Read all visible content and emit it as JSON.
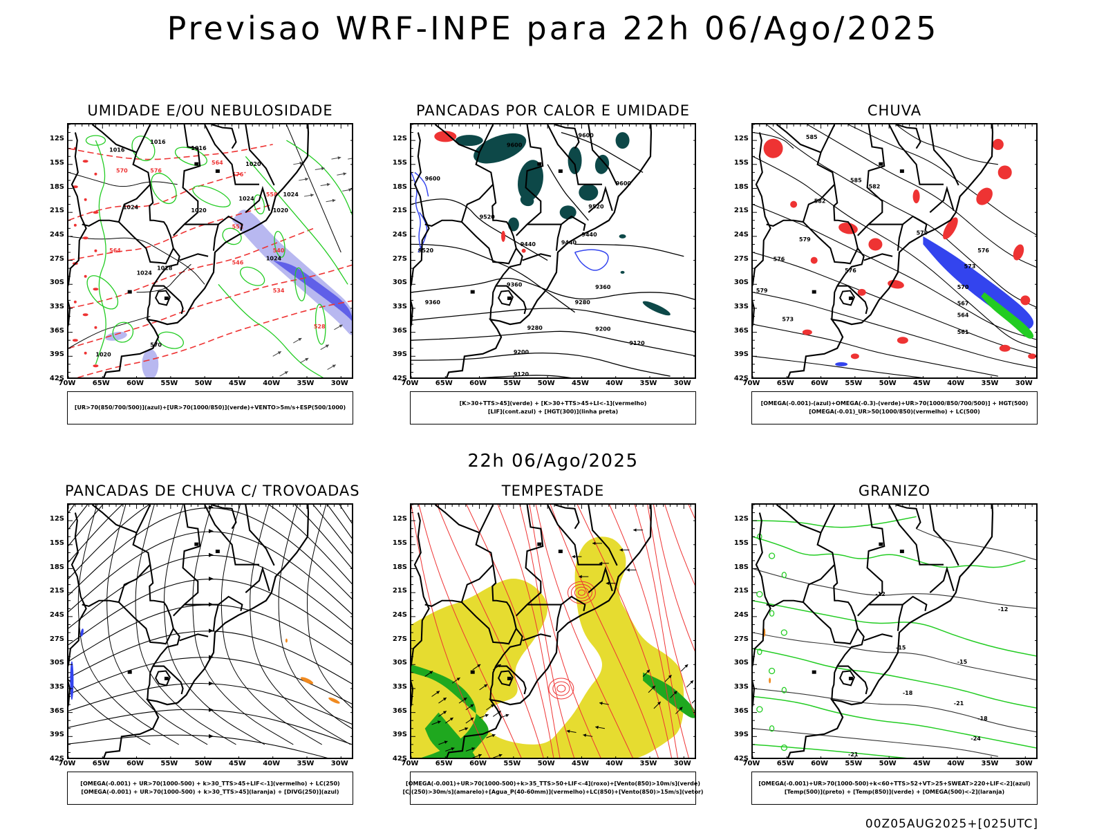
{
  "title": "Previsao WRF-INPE  para 22h 06/Ago/2025",
  "mid_date": "22h 06/Ago/2025",
  "run_label": "00Z05AUG2025+[025UTC]",
  "lat_labels": [
    "12S",
    "15S",
    "18S",
    "21S",
    "24S",
    "27S",
    "30S",
    "33S",
    "36S",
    "39S",
    "42S"
  ],
  "lon_labels": [
    "70W",
    "65W",
    "60W",
    "55W",
    "50W",
    "45W",
    "40W",
    "35W",
    "30W"
  ],
  "colors": {
    "green": "#22cc22",
    "red": "#ee3333",
    "blue": "#3344ee",
    "lightblue": "#b8b8f0",
    "teal": "#0d4848",
    "yellow": "#e6dc30",
    "orange": "#f08a20",
    "black": "#000000"
  },
  "panels": [
    {
      "title": "UMIDADE E/OU NEBULOSIDADE",
      "legend": [
        "[UR>70(850/700/500)](azul)+[UR>70(1000/850)](verde)+VENTO>5m/s+ESP(500/1000)"
      ],
      "labels": [
        "1016",
        "1016",
        "1016",
        "1020",
        "1020",
        "1024",
        "1024",
        "1020",
        "1024",
        "1028",
        "1024",
        "1024",
        "1020",
        "570",
        "570",
        "576",
        "564",
        "558",
        "552",
        "546",
        "540",
        "534",
        "528",
        "576",
        "564"
      ]
    },
    {
      "title": "PANCADAS POR CALOR E UMIDADE",
      "legend": [
        "[K>30+TTS>45](verde) + [K>30+TTS>45+LI<-1](vermelho)",
        "[LIF](cont.azul) + [HGT(300)](linha preta)"
      ],
      "labels": [
        "9600",
        "9600",
        "9600",
        "9600",
        "9520",
        "9520",
        "9520",
        "9440",
        "9440",
        "9440",
        "9360",
        "9360",
        "9360",
        "9280",
        "9280",
        "9200",
        "9200",
        "9120",
        "9120"
      ]
    },
    {
      "title": "CHUVA",
      "legend": [
        "[OMEGA(-0.001)-(azul)+OMEGA(-0.3)-(verde)+UR>70(1000/850/700/500)] + HGT(500)",
        "[OMEGA(-0.01)_UR>50(1000/850)(vermelho) + LC(500)"
      ],
      "labels": [
        "585",
        "585",
        "582",
        "582",
        "579",
        "579",
        "579",
        "576",
        "576",
        "576",
        "573",
        "573",
        "570",
        "567",
        "564",
        "561"
      ]
    },
    {
      "title": "PANCADAS DE CHUVA C/ TROVOADAS",
      "legend": [
        "[OMEGA(-0.001) + UR>70(1000-500) + k>30_TTS>45+LIF<-1](vermelho) + LC(250)",
        "[OMEGA(-0.001) + UR>70(1000-500) + k>30_TTS>45](laranja) + [DIVG(250)](azul)"
      ],
      "labels": []
    },
    {
      "title": "TEMPESTADE",
      "legend": [
        "[OMEGA(-0.001)+UR>70(1000-500)+k>35_TTS>50+LIF<-4](roxo)+[Vento(850)>10m/s](verde)",
        "[CJ(250)>30m/s](amarelo)+[Agua_P(40-60mm)](vermelho)+LC(850)+[Vento(850)>15m/s](vetor)"
      ],
      "labels": []
    },
    {
      "title": "GRANIZO",
      "legend": [
        "[OMEGA(-0.001)+UR>70(1000-500)+k<60+TTS>52+VT>25+SWEAT>220+LIF<-2](azul)",
        "[Temp(500)](preto) + [Temp(850)](verde) + [OMEGA(500)<-2](laranja)"
      ],
      "labels": [
        "-12",
        "-12",
        "-15",
        "-15",
        "-18",
        "-18",
        "-21",
        "-21",
        "-24"
      ]
    }
  ]
}
